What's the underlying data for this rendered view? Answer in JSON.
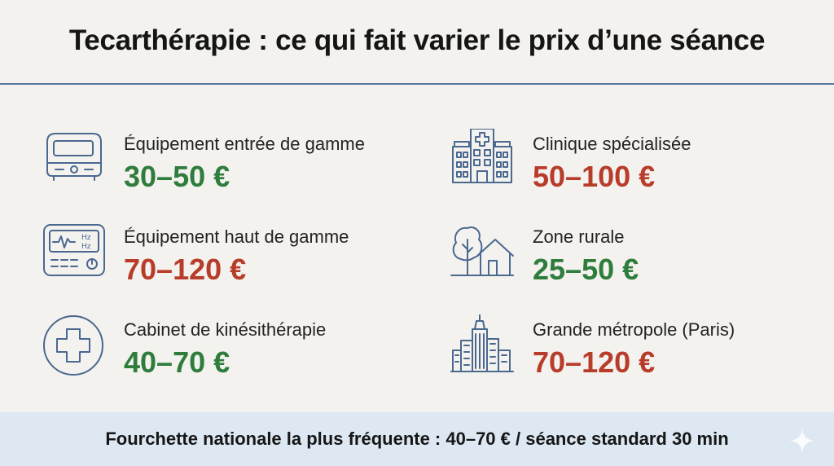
{
  "title": "Tecarthérapie : ce qui fait varier le prix d’une séance",
  "colors": {
    "low": "#2e7d3c",
    "high": "#b83c2a",
    "divider": "#5a77a0",
    "footer_bg": "#dde8f3"
  },
  "items": [
    {
      "icon": "basic-device-icon",
      "label": "Équipement entrée de gamme",
      "price": "30–50 €",
      "tone": "low"
    },
    {
      "icon": "hz-device-icon",
      "label": "Équipement haut de gamme",
      "price": "70–120 €",
      "tone": "high"
    },
    {
      "icon": "medical-cross-icon",
      "label": "Cabinet de kinésithérapie",
      "price": "40–70 €",
      "tone": "low"
    },
    {
      "icon": "hospital-icon",
      "label": "Clinique spécialisée",
      "price": "50–100 €",
      "tone": "high"
    },
    {
      "icon": "tree-house-icon",
      "label": "Zone rurale",
      "price": "25–50 €",
      "tone": "low"
    },
    {
      "icon": "city-skyline-icon",
      "label": "Grande métropole (Paris)",
      "price": "70–120 €",
      "tone": "high"
    }
  ],
  "device_display": {
    "line1": "Hz",
    "line2": "Hz"
  },
  "footer": "Fourchette nationale la plus fréquente : 40–70 € / séance standard 30 min"
}
